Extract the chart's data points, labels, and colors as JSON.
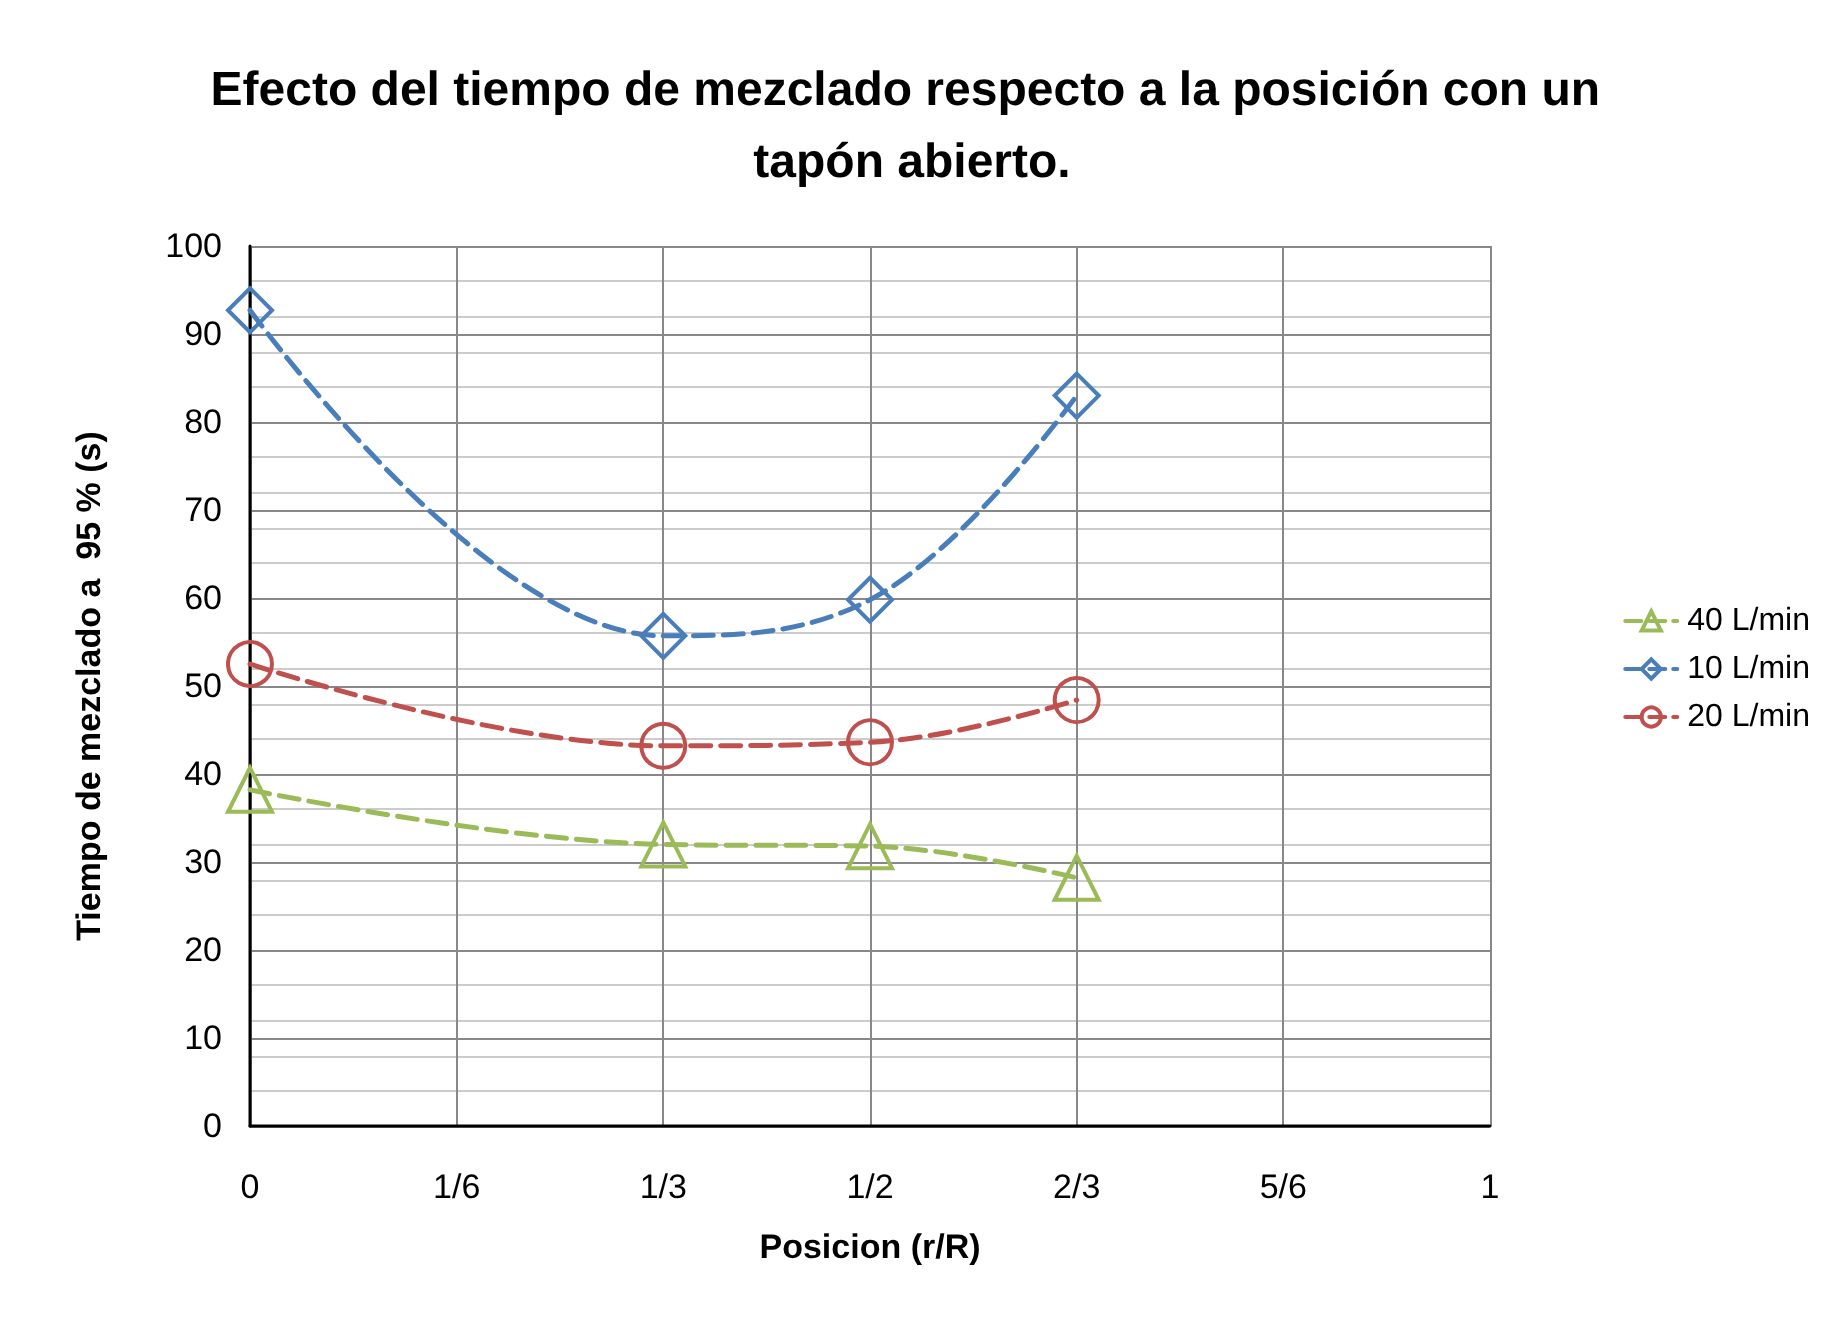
{
  "chart_data": {
    "type": "line",
    "title": "Efecto del tiempo de mezclado respecto a la posición con un tapón abierto.",
    "xlabel": "Posicion (r/R)",
    "ylabel": "Tiempo de mezclado a  95 % (s)",
    "x": [
      0,
      0.3333,
      0.5,
      0.6667
    ],
    "series": [
      {
        "name": "40 L/min",
        "color": "#9bbb59",
        "marker": "triangle",
        "values": [
          38.2,
          32,
          31.8,
          28.2
        ]
      },
      {
        "name": "10 L/min",
        "color": "#4a7ebb",
        "marker": "diamond",
        "values": [
          92.7,
          55.7,
          59.8,
          83
        ]
      },
      {
        "name": "20 L/min",
        "color": "#c0504d",
        "marker": "circle",
        "values": [
          52.5,
          43.2,
          43.6,
          48.4
        ]
      }
    ],
    "xlim": [
      0,
      1
    ],
    "xticks": [
      0,
      {
        "value": 0.1667,
        "label": "1/6"
      },
      {
        "value": 0.3333,
        "label": "1/3"
      },
      {
        "value": 0.5,
        "label": "1/2"
      },
      {
        "value": 0.6667,
        "label": "2/3"
      },
      {
        "value": 0.8333,
        "label": "5/6"
      },
      1
    ],
    "ylim": [
      0,
      100
    ],
    "yticks": [
      0,
      10,
      20,
      30,
      40,
      50,
      60,
      70,
      80,
      90,
      100
    ],
    "grid": true,
    "legend": "right",
    "line_style": "dashed"
  }
}
